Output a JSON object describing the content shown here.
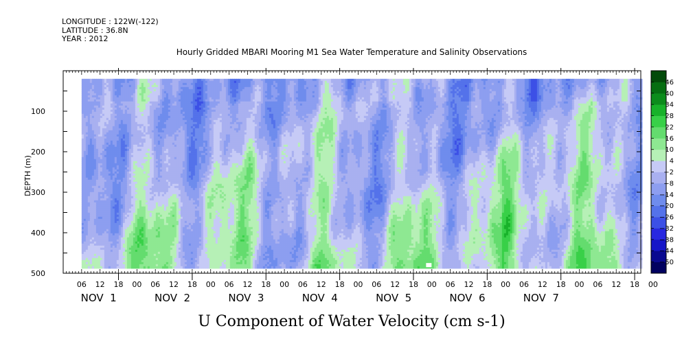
{
  "header": {
    "longitude": "LONGITUDE : 122W(-122)",
    "latitude": "LATITUDE : 36.8N",
    "year": "YEAR : 2012"
  },
  "chart_data": {
    "type": "heatmap",
    "title": "Hourly Gridded MBARI Mooring M1 Sea Water Temperature and Salinity Observations",
    "xlabel": "U Component of Water Velocity (cm s-1)",
    "ylabel": "DEPTH (m)",
    "y_axis": {
      "range": [
        500,
        0
      ],
      "ticks": [
        100,
        200,
        300,
        400,
        500
      ],
      "inverted": true,
      "data_range": [
        20,
        485
      ]
    },
    "x_axis": {
      "hour_ticks": [
        "06",
        "12",
        "18",
        "00",
        "06",
        "12",
        "18",
        "00",
        "06",
        "12",
        "18",
        "00",
        "06",
        "12",
        "18",
        "00",
        "06",
        "12",
        "18",
        "00",
        "06",
        "12",
        "18",
        "00",
        "06",
        "12",
        "18",
        "00",
        "06",
        "12",
        "18",
        "00"
      ],
      "day_labels": [
        "NOV  1",
        "NOV  2",
        "NOV  3",
        "NOV  4",
        "NOV  5",
        "NOV  6",
        "NOV  7"
      ],
      "range_hours": [
        0,
        188
      ]
    },
    "colorbar": {
      "levels": [
        -50,
        -44,
        -38,
        -32,
        -26,
        -20,
        -14,
        -8,
        -2,
        4,
        10,
        16,
        22,
        28,
        34,
        40,
        46
      ],
      "labels": [
        "46",
        "40",
        "34",
        "28",
        "22",
        "16",
        "10",
        "4",
        "−2",
        "−8",
        "−14",
        "−20",
        "−26",
        "−32",
        "−38",
        "−44",
        "−50"
      ],
      "colors": [
        "#010160",
        "#0a0a90",
        "#1616c8",
        "#2828e0",
        "#3c50e6",
        "#5472ea",
        "#6f8ced",
        "#8d9ef0",
        "#a9b0f0",
        "#c6caf6",
        "#b6f0b6",
        "#8ee892",
        "#64dc6e",
        "#38d048",
        "#18b22a",
        "#0c8c1c",
        "#066e12",
        "#034a0a"
      ]
    },
    "grid": false
  }
}
